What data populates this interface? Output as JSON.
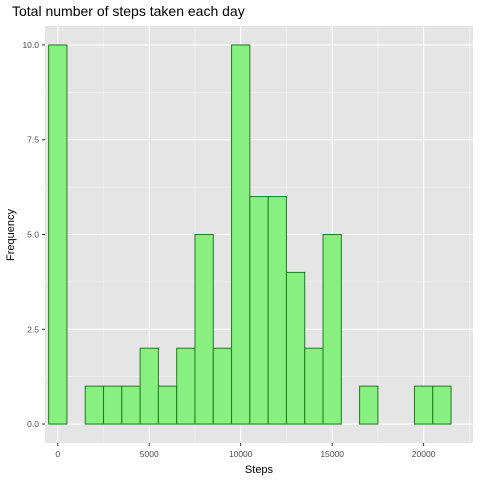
{
  "chart_data": {
    "type": "bar",
    "title": "Total number of steps taken each day",
    "xlabel": "Steps",
    "ylabel": "Frequency",
    "bin_width": 1000,
    "bins": [
      {
        "x_start": -500,
        "x_end": 500,
        "count": 10
      },
      {
        "x_start": 500,
        "x_end": 1500,
        "count": 0
      },
      {
        "x_start": 1500,
        "x_end": 2500,
        "count": 1
      },
      {
        "x_start": 2500,
        "x_end": 3500,
        "count": 1
      },
      {
        "x_start": 3500,
        "x_end": 4500,
        "count": 1
      },
      {
        "x_start": 4500,
        "x_end": 5500,
        "count": 2
      },
      {
        "x_start": 5500,
        "x_end": 6500,
        "count": 1
      },
      {
        "x_start": 6500,
        "x_end": 7500,
        "count": 2
      },
      {
        "x_start": 7500,
        "x_end": 8500,
        "count": 5
      },
      {
        "x_start": 8500,
        "x_end": 9500,
        "count": 2
      },
      {
        "x_start": 9500,
        "x_end": 10500,
        "count": 10
      },
      {
        "x_start": 10500,
        "x_end": 11500,
        "count": 6
      },
      {
        "x_start": 11500,
        "x_end": 12500,
        "count": 6
      },
      {
        "x_start": 12500,
        "x_end": 13500,
        "count": 4
      },
      {
        "x_start": 13500,
        "x_end": 14500,
        "count": 2
      },
      {
        "x_start": 14500,
        "x_end": 15500,
        "count": 5
      },
      {
        "x_start": 15500,
        "x_end": 16500,
        "count": 0
      },
      {
        "x_start": 16500,
        "x_end": 17500,
        "count": 1
      },
      {
        "x_start": 17500,
        "x_end": 18500,
        "count": 0
      },
      {
        "x_start": 18500,
        "x_end": 19500,
        "count": 0
      },
      {
        "x_start": 19500,
        "x_end": 20500,
        "count": 1
      },
      {
        "x_start": 20500,
        "x_end": 21500,
        "count": 1
      }
    ],
    "xlim": [
      -700,
      22700
    ],
    "ylim": [
      -0.5,
      10.5
    ],
    "x_ticks": [
      0,
      5000,
      10000,
      15000,
      20000
    ],
    "x_tick_labels": [
      "0",
      "5000",
      "10000",
      "15000",
      "20000"
    ],
    "y_ticks": [
      0,
      2.5,
      5,
      7.5,
      10
    ],
    "y_tick_labels": [
      "0.0",
      "2.5",
      "5.0",
      "7.5",
      "10.0"
    ],
    "grid": true,
    "legend": "none",
    "colors": {
      "panel_background": "#e5e5e5",
      "grid_major": "#ffffff",
      "grid_minor": "#f2f2f2",
      "bar_fill": "#88f080",
      "bar_stroke": "#1f7a1f",
      "tick_mark": "#333333"
    }
  }
}
